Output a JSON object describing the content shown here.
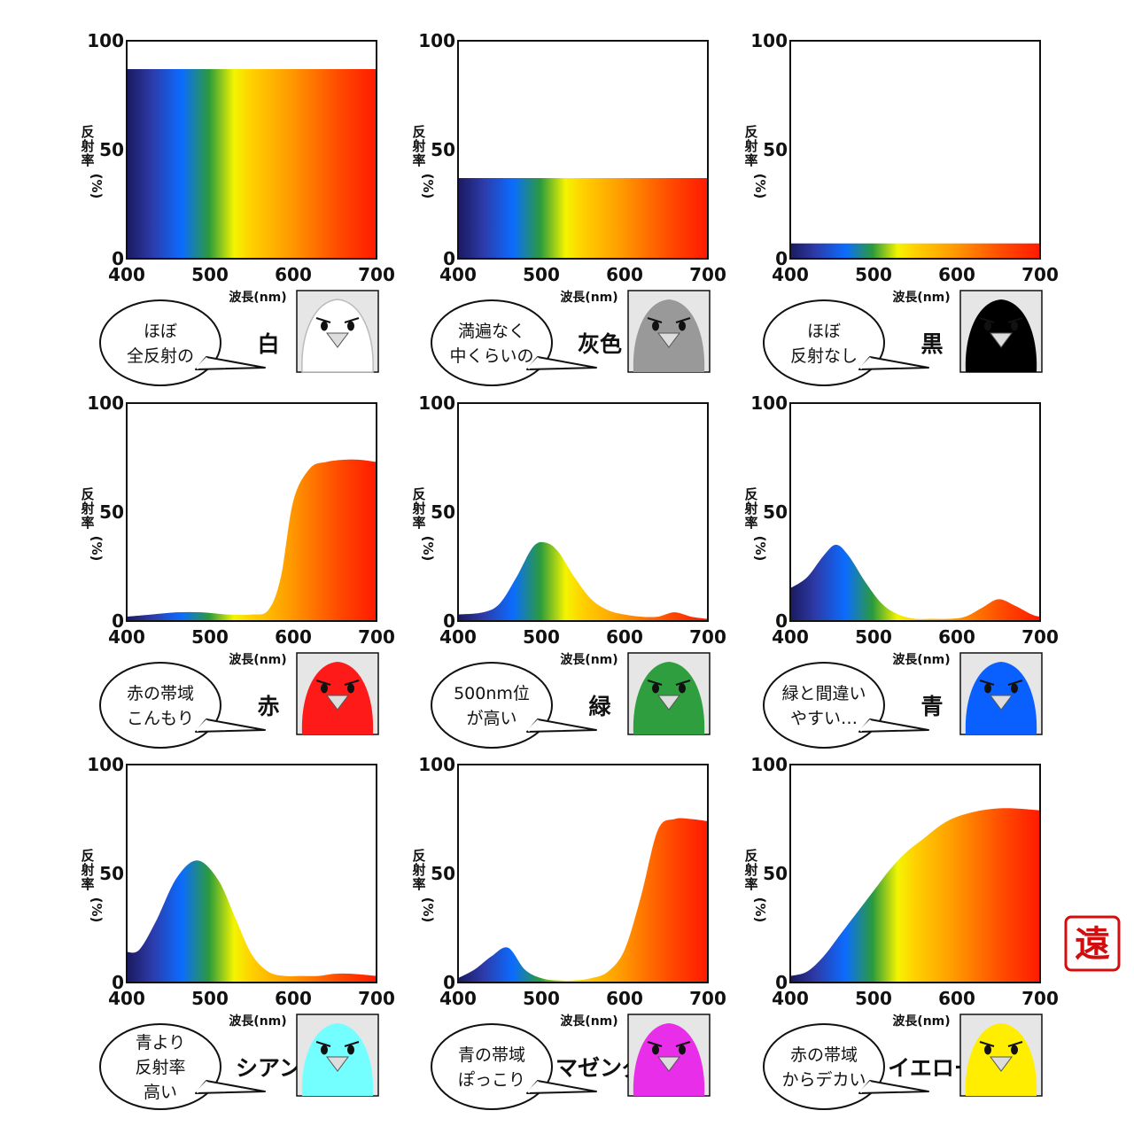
{
  "axis": {
    "ylabel": "反射率(%)",
    "xlabel": "波長(nm)",
    "yticks": [
      "0",
      "50",
      "100"
    ],
    "xticks": [
      "400",
      "500",
      "600",
      "700"
    ]
  },
  "stamp_text": "遠",
  "chart_data": [
    {
      "type": "area",
      "color_name": "白",
      "bird_color": "#ffffff",
      "bubble": [
        "ほぼ",
        "全反射の"
      ],
      "x": [
        400,
        700
      ],
      "y": [
        87,
        87
      ],
      "ylim": [
        0,
        100
      ],
      "xlim": [
        400,
        700
      ]
    },
    {
      "type": "area",
      "color_name": "灰色",
      "bird_color": "#999999",
      "bubble": [
        "満遍なく",
        "中くらいの"
      ],
      "x": [
        400,
        700
      ],
      "y": [
        37,
        37
      ],
      "ylim": [
        0,
        100
      ],
      "xlim": [
        400,
        700
      ]
    },
    {
      "type": "area",
      "color_name": "黒",
      "bird_color": "#000000",
      "bubble": [
        "ほぼ",
        "反射なし"
      ],
      "x": [
        400,
        700
      ],
      "y": [
        7,
        7
      ],
      "ylim": [
        0,
        100
      ],
      "xlim": [
        400,
        700
      ]
    },
    {
      "type": "area",
      "color_name": "赤",
      "bird_color": "#ff1a1a",
      "bubble": [
        "赤の帯域",
        "こんもり"
      ],
      "x": [
        400,
        430,
        460,
        490,
        520,
        550,
        570,
        585,
        600,
        620,
        640,
        660,
        680,
        700
      ],
      "y": [
        2,
        3,
        4,
        4,
        3,
        3,
        5,
        20,
        55,
        70,
        73,
        74,
        74,
        73
      ],
      "ylim": [
        0,
        100
      ],
      "xlim": [
        400,
        700
      ]
    },
    {
      "type": "area",
      "color_name": "緑",
      "bird_color": "#2e9e3e",
      "bubble": [
        "500nm位",
        "が高い"
      ],
      "x": [
        400,
        430,
        450,
        470,
        490,
        505,
        520,
        540,
        560,
        580,
        600,
        620,
        640,
        660,
        680,
        700
      ],
      "y": [
        3,
        4,
        8,
        20,
        34,
        36,
        32,
        20,
        10,
        5,
        3,
        2,
        2,
        4,
        2,
        1
      ],
      "ylim": [
        0,
        100
      ],
      "xlim": [
        400,
        700
      ]
    },
    {
      "type": "area",
      "color_name": "青",
      "bird_color": "#0a5fff",
      "bubble": [
        "緑と間違い",
        "やすい…"
      ],
      "x": [
        400,
        420,
        440,
        455,
        470,
        490,
        510,
        530,
        550,
        570,
        590,
        610,
        630,
        650,
        670,
        690,
        700
      ],
      "y": [
        15,
        20,
        30,
        35,
        30,
        18,
        8,
        3,
        1,
        1,
        1,
        2,
        6,
        10,
        7,
        3,
        2
      ],
      "ylim": [
        0,
        100
      ],
      "xlim": [
        400,
        700
      ]
    },
    {
      "type": "area",
      "color_name": "シアン",
      "bird_color": "#73ffff",
      "bubble": [
        "青より",
        "反射率",
        "高い"
      ],
      "x": [
        400,
        415,
        435,
        460,
        485,
        510,
        530,
        550,
        570,
        590,
        610,
        630,
        650,
        670,
        700
      ],
      "y": [
        14,
        15,
        28,
        48,
        56,
        47,
        30,
        13,
        5,
        3,
        3,
        3,
        4,
        4,
        3
      ],
      "ylim": [
        0,
        100
      ],
      "xlim": [
        400,
        700
      ]
    },
    {
      "type": "area",
      "color_name": "マゼンダ",
      "bird_color": "#e82ee8",
      "bubble": [
        "青の帯域",
        "ぽっこり"
      ],
      "x": [
        400,
        420,
        440,
        460,
        480,
        500,
        520,
        540,
        560,
        580,
        600,
        620,
        640,
        660,
        680,
        700
      ],
      "y": [
        2,
        6,
        12,
        16,
        6,
        2,
        1,
        1,
        2,
        5,
        15,
        40,
        70,
        75,
        75,
        74
      ],
      "ylim": [
        0,
        100
      ],
      "xlim": [
        400,
        700
      ]
    },
    {
      "type": "area",
      "color_name": "イエロー",
      "bird_color": "#ffee00",
      "bubble": [
        "赤の帯域",
        "からデカい"
      ],
      "x": [
        400,
        420,
        440,
        460,
        480,
        500,
        520,
        540,
        560,
        580,
        600,
        630,
        660,
        700
      ],
      "y": [
        3,
        5,
        12,
        22,
        32,
        42,
        52,
        60,
        66,
        72,
        76,
        79,
        80,
        79
      ],
      "ylim": [
        0,
        100
      ],
      "xlim": [
        400,
        700
      ]
    }
  ]
}
